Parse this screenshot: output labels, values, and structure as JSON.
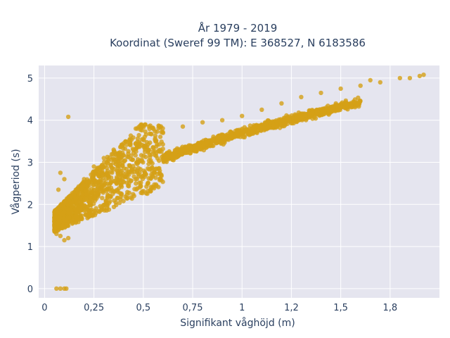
{
  "chart_data": {
    "type": "scatter",
    "title_line1": "År 1979 - 2019",
    "title_line2": "Koordinat (Sweref 99 TM): E 368527, N 6183586",
    "xlabel": "Signifikant våghöjd (m)",
    "ylabel": "Vågperiod (s)",
    "xlim": [
      -0.03,
      2.0
    ],
    "ylim": [
      -0.22,
      5.3
    ],
    "xticks": [
      0,
      0.25,
      0.5,
      0.75,
      1,
      1.25,
      1.5,
      1.75
    ],
    "xtick_labels": [
      "0",
      "0,25",
      "0,5",
      "0,75",
      "1",
      "1,2",
      "1,5",
      "1,8"
    ],
    "yticks": [
      0,
      1,
      2,
      3,
      4,
      5
    ],
    "ytick_labels": [
      "0",
      "1",
      "2",
      "3",
      "4",
      "5"
    ],
    "grid": true,
    "marker_color": "#D4A017",
    "background_color": "#E5E5EF",
    "points_sampled": [
      [
        0.06,
        0.0
      ],
      [
        0.08,
        0.0
      ],
      [
        0.1,
        0.0
      ],
      [
        0.11,
        0.0
      ],
      [
        0.12,
        4.08
      ],
      [
        0.05,
        1.4
      ],
      [
        0.06,
        1.3
      ],
      [
        0.06,
        1.55
      ],
      [
        0.08,
        1.25
      ],
      [
        0.1,
        1.15
      ],
      [
        0.12,
        1.2
      ],
      [
        0.08,
        2.75
      ],
      [
        0.1,
        2.6
      ],
      [
        0.07,
        2.35
      ],
      [
        0.15,
        2.2
      ],
      [
        0.2,
        2.6
      ],
      [
        0.25,
        2.9
      ],
      [
        0.3,
        3.1
      ],
      [
        0.35,
        3.3
      ],
      [
        0.4,
        3.45
      ],
      [
        0.5,
        3.55
      ],
      [
        0.6,
        3.7
      ],
      [
        0.7,
        3.85
      ],
      [
        0.8,
        3.95
      ],
      [
        0.9,
        4.0
      ],
      [
        1.0,
        4.1
      ],
      [
        1.1,
        4.25
      ],
      [
        1.2,
        4.4
      ],
      [
        1.3,
        4.55
      ],
      [
        1.4,
        4.65
      ],
      [
        1.5,
        4.75
      ],
      [
        1.6,
        4.82
      ],
      [
        1.7,
        4.9
      ],
      [
        1.8,
        5.0
      ],
      [
        1.85,
        5.0
      ],
      [
        1.9,
        5.05
      ],
      [
        1.92,
        5.08
      ],
      [
        1.65,
        4.95
      ]
    ]
  }
}
